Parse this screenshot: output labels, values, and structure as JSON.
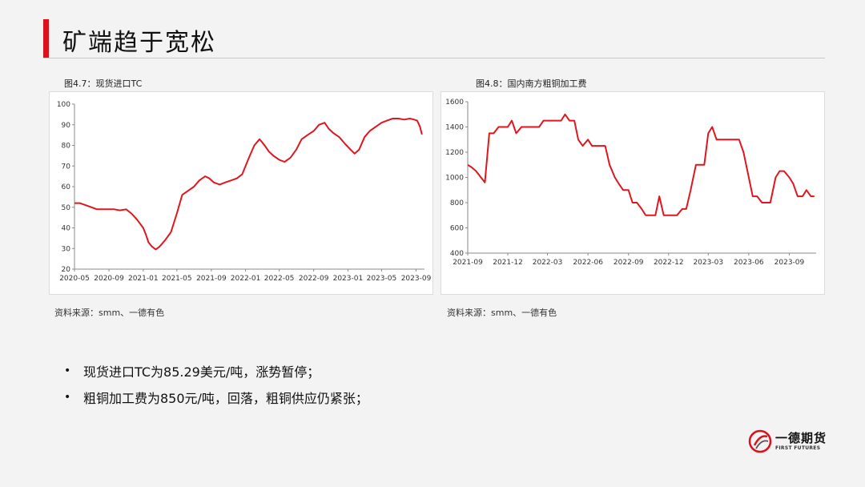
{
  "page": {
    "title": "矿端趋于宽松"
  },
  "charts": {
    "left": {
      "caption": "图4.7：现货进口TC",
      "source": "资料来源：smm、一德有色"
    },
    "right": {
      "caption": "图4.8：国内南方粗铜加工费",
      "source": "资料来源：smm、一德有色"
    }
  },
  "bullets": [
    "现货进口TC为85.29美元/吨，涨势暂停；",
    "粗铜加工费为850元/吨，回落，粗铜供应仍紧张；"
  ],
  "logo": {
    "name": "一德期货",
    "sub": "FIRST FUTURES"
  },
  "colors": {
    "accent": "#d9121c",
    "line": "#e0161f"
  },
  "chart_data": [
    {
      "type": "line",
      "title": "现货进口TC",
      "ylim": [
        20,
        100
      ],
      "yticks": [
        20,
        30,
        40,
        50,
        60,
        70,
        80,
        90,
        100
      ],
      "xlim": [
        "2020-05",
        "2023-10"
      ],
      "xtick_labels": [
        "2020-05",
        "2020-09",
        "2021-01",
        "2021-05",
        "2021-09",
        "2022-01",
        "2022-05",
        "2022-09",
        "2023-01",
        "2023-05",
        "2023-09"
      ],
      "grid": false,
      "series": [
        {
          "x": [
            "2020-05-01",
            "2020-05-20",
            "2020-06-10",
            "2020-07-01",
            "2020-07-20",
            "2020-08-10",
            "2020-09-01",
            "2020-09-20",
            "2020-10-10",
            "2020-11-01",
            "2020-11-20",
            "2020-12-10",
            "2021-01-01",
            "2021-01-10",
            "2021-01-20",
            "2021-02-01",
            "2021-02-15",
            "2021-03-01",
            "2021-03-20",
            "2021-04-10",
            "2021-05-01",
            "2021-05-20",
            "2021-06-10",
            "2021-07-01",
            "2021-07-20",
            "2021-08-10",
            "2021-08-25",
            "2021-09-10",
            "2021-10-01",
            "2021-10-20",
            "2021-11-10",
            "2021-12-01",
            "2021-12-20",
            "2022-01-10",
            "2022-02-01",
            "2022-02-20",
            "2022-03-10",
            "2022-03-25",
            "2022-04-10",
            "2022-05-01",
            "2022-05-20",
            "2022-06-10",
            "2022-07-01",
            "2022-07-20",
            "2022-08-10",
            "2022-09-01",
            "2022-09-20",
            "2022-10-10",
            "2022-10-25",
            "2022-11-10",
            "2022-12-01",
            "2022-12-20",
            "2023-01-10",
            "2023-01-25",
            "2023-02-10",
            "2023-03-01",
            "2023-03-20",
            "2023-04-10",
            "2023-05-01",
            "2023-05-20",
            "2023-06-10",
            "2023-07-01",
            "2023-07-20",
            "2023-08-10",
            "2023-08-25",
            "2023-09-05",
            "2023-09-15",
            "2023-09-22"
          ],
          "y": [
            52,
            52,
            51,
            50,
            49,
            49,
            49,
            49,
            48.5,
            49,
            47,
            44,
            40,
            37,
            33,
            31,
            29.5,
            31,
            34,
            38,
            47,
            56,
            58,
            60,
            63,
            65,
            64,
            62,
            61,
            62,
            63,
            64,
            66,
            73,
            80,
            83,
            80,
            77,
            75,
            73,
            72,
            74,
            78,
            83,
            85,
            87,
            90,
            91,
            88,
            86,
            84,
            81,
            78,
            76,
            78,
            84,
            87,
            89,
            91,
            92,
            93,
            93,
            92.5,
            93,
            92.5,
            92,
            89,
            85.29
          ]
        }
      ]
    },
    {
      "type": "line",
      "title": "国内南方粗铜加工费",
      "ylim": [
        400,
        1600
      ],
      "yticks": [
        400,
        600,
        800,
        1000,
        1200,
        1400,
        1600
      ],
      "xlim": [
        "2021-09",
        "2023-11"
      ],
      "xtick_labels": [
        "2021-09",
        "2021-12",
        "2022-03",
        "2022-06",
        "2022-09",
        "2022-12",
        "2023-03",
        "2023-06",
        "2023-09"
      ],
      "grid": false,
      "series": [
        {
          "x": [
            "2021-09-01",
            "2021-09-10",
            "2021-09-20",
            "2021-10-01",
            "2021-10-10",
            "2021-10-20",
            "2021-10-30",
            "2021-11-10",
            "2021-11-20",
            "2021-12-01",
            "2021-12-10",
            "2021-12-20",
            "2022-01-01",
            "2022-01-10",
            "2022-01-20",
            "2022-02-01",
            "2022-02-10",
            "2022-02-20",
            "2022-03-01",
            "2022-03-10",
            "2022-03-20",
            "2022-04-01",
            "2022-04-10",
            "2022-04-20",
            "2022-05-01",
            "2022-05-10",
            "2022-05-20",
            "2022-06-01",
            "2022-06-10",
            "2022-06-20",
            "2022-07-01",
            "2022-07-10",
            "2022-07-20",
            "2022-08-01",
            "2022-08-10",
            "2022-08-20",
            "2022-09-01",
            "2022-09-10",
            "2022-09-20",
            "2022-10-01",
            "2022-10-10",
            "2022-10-20",
            "2022-11-01",
            "2022-11-10",
            "2022-11-20",
            "2022-12-01",
            "2022-12-10",
            "2022-12-20",
            "2023-01-01",
            "2023-01-10",
            "2023-01-20",
            "2023-02-01",
            "2023-02-10",
            "2023-02-20",
            "2023-03-01",
            "2023-03-10",
            "2023-03-20",
            "2023-04-01",
            "2023-04-10",
            "2023-04-20",
            "2023-05-01",
            "2023-05-10",
            "2023-05-20",
            "2023-06-01",
            "2023-06-10",
            "2023-06-20",
            "2023-07-01",
            "2023-07-10",
            "2023-07-20",
            "2023-08-01",
            "2023-08-10",
            "2023-08-20",
            "2023-09-01",
            "2023-09-10",
            "2023-09-20",
            "2023-10-01",
            "2023-10-10",
            "2023-10-20",
            "2023-10-28"
          ],
          "y": [
            1100,
            1080,
            1050,
            1000,
            960,
            1350,
            1350,
            1400,
            1400,
            1400,
            1450,
            1350,
            1400,
            1400,
            1400,
            1400,
            1400,
            1450,
            1450,
            1450,
            1450,
            1450,
            1500,
            1450,
            1450,
            1300,
            1250,
            1300,
            1250,
            1250,
            1250,
            1250,
            1100,
            1000,
            950,
            900,
            900,
            800,
            800,
            750,
            700,
            700,
            700,
            850,
            700,
            700,
            700,
            700,
            750,
            750,
            900,
            1100,
            1100,
            1100,
            1350,
            1400,
            1300,
            1300,
            1300,
            1300,
            1300,
            1300,
            1200,
            1000,
            850,
            850,
            800,
            800,
            800,
            1000,
            1050,
            1050,
            1000,
            950,
            850,
            850,
            900,
            850,
            850
          ]
        }
      ]
    }
  ]
}
